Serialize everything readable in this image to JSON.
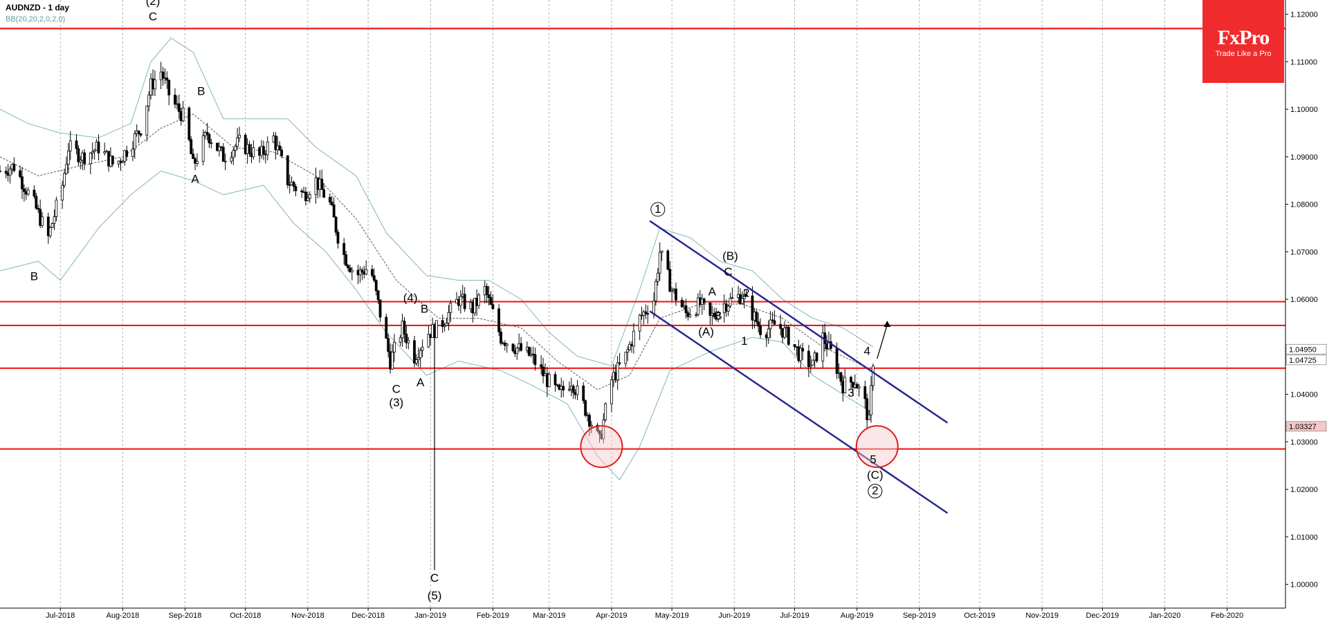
{
  "header": {
    "symbol_title": "AUDNZD - 1 day",
    "indicator_label": "BB(20,20,2,0,2,0)"
  },
  "brand": {
    "name": "FxPro",
    "tagline": "Trade Like a Pro",
    "color": "#ef2b2d"
  },
  "chart_data": {
    "type": "candlestick",
    "title": "AUDNZD - 1 day",
    "xlabel": "",
    "ylabel": "",
    "ylim": [
      0.995,
      1.123
    ],
    "xlim": [
      "2018-06-01",
      "2020-03-01"
    ],
    "grid": true,
    "y_ticks": [
      "1.12000",
      "1.11000",
      "1.10000",
      "1.09000",
      "1.08000",
      "1.07000",
      "1.06000",
      "1.04000",
      "1.03000",
      "1.02000",
      "1.01000",
      "1.00000"
    ],
    "x_ticks": [
      {
        "label": "Jul-2018",
        "date": "2018-07-01"
      },
      {
        "label": "Aug-2018",
        "date": "2018-08-01"
      },
      {
        "label": "Sep-2018",
        "date": "2018-09-01"
      },
      {
        "label": "Oct-2018",
        "date": "2018-10-01"
      },
      {
        "label": "Nov-2018",
        "date": "2018-11-01"
      },
      {
        "label": "Dec-2018",
        "date": "2018-12-01"
      },
      {
        "label": "Jan-2019",
        "date": "2019-01-01"
      },
      {
        "label": "Feb-2019",
        "date": "2019-02-01"
      },
      {
        "label": "Mar-2019",
        "date": "2019-03-01"
      },
      {
        "label": "Apr-2019",
        "date": "2019-04-01"
      },
      {
        "label": "May-2019",
        "date": "2019-05-01"
      },
      {
        "label": "Jun-2019",
        "date": "2019-06-01"
      },
      {
        "label": "Jul-2019",
        "date": "2019-07-01"
      },
      {
        "label": "Aug-2019",
        "date": "2019-08-01"
      },
      {
        "label": "Sep-2019",
        "date": "2019-09-01"
      },
      {
        "label": "Oct-2019",
        "date": "2019-10-01"
      },
      {
        "label": "Nov-2019",
        "date": "2019-11-01"
      },
      {
        "label": "Dec-2019",
        "date": "2019-12-01"
      },
      {
        "label": "Jan-2020",
        "date": "2020-01-01"
      },
      {
        "label": "Feb-2020",
        "date": "2020-02-01"
      }
    ],
    "price_tags": [
      {
        "value": 1.0495,
        "label": "1.04950",
        "style": "white"
      },
      {
        "value": 1.04725,
        "label": "1.04725",
        "style": "white"
      },
      {
        "value": 1.03327,
        "label": "1.03327",
        "style": "pink"
      }
    ],
    "horizontal_levels": [
      1.117,
      1.0595,
      1.0545,
      1.0455,
      1.0285
    ],
    "price_path": [
      [
        "2018-06-01",
        1.087
      ],
      [
        "2018-06-08",
        1.088
      ],
      [
        "2018-06-18",
        1.08
      ],
      [
        "2018-06-25",
        1.073
      ],
      [
        "2018-07-02",
        1.084
      ],
      [
        "2018-07-05",
        1.092
      ],
      [
        "2018-07-12",
        1.09
      ],
      [
        "2018-07-20",
        1.092
      ],
      [
        "2018-07-28",
        1.088
      ],
      [
        "2018-08-04",
        1.092
      ],
      [
        "2018-08-10",
        1.096
      ],
      [
        "2018-08-15",
        1.105
      ],
      [
        "2018-08-20",
        1.108
      ],
      [
        "2018-08-25",
        1.102
      ],
      [
        "2018-09-01",
        1.098
      ],
      [
        "2018-09-05",
        1.088
      ],
      [
        "2018-09-12",
        1.095
      ],
      [
        "2018-09-20",
        1.09
      ],
      [
        "2018-09-28",
        1.093
      ],
      [
        "2018-10-08",
        1.09
      ],
      [
        "2018-10-15",
        1.094
      ],
      [
        "2018-10-22",
        1.085
      ],
      [
        "2018-10-30",
        1.082
      ],
      [
        "2018-11-05",
        1.085
      ],
      [
        "2018-11-12",
        1.08
      ],
      [
        "2018-11-18",
        1.07
      ],
      [
        "2018-11-25",
        1.065
      ],
      [
        "2018-12-02",
        1.067
      ],
      [
        "2018-12-08",
        1.055
      ],
      [
        "2018-12-12",
        1.047
      ],
      [
        "2018-12-18",
        1.054
      ],
      [
        "2018-12-24",
        1.048
      ],
      [
        "2018-12-31",
        1.053
      ],
      [
        "2019-01-05",
        1.054
      ],
      [
        "2019-01-15",
        1.06
      ],
      [
        "2019-01-22",
        1.058
      ],
      [
        "2019-01-28",
        1.062
      ],
      [
        "2019-02-05",
        1.052
      ],
      [
        "2019-02-12",
        1.05
      ],
      [
        "2019-02-20",
        1.048
      ],
      [
        "2019-02-28",
        1.043
      ],
      [
        "2019-03-06",
        1.04
      ],
      [
        "2019-03-12",
        1.043
      ],
      [
        "2019-03-20",
        1.036
      ],
      [
        "2019-03-26",
        1.03
      ],
      [
        "2019-04-01",
        1.043
      ],
      [
        "2019-04-08",
        1.048
      ],
      [
        "2019-04-15",
        1.056
      ],
      [
        "2019-04-22",
        1.06
      ],
      [
        "2019-04-25",
        1.07
      ],
      [
        "2019-05-01",
        1.062
      ],
      [
        "2019-05-08",
        1.057
      ],
      [
        "2019-05-15",
        1.059
      ],
      [
        "2019-05-20",
        1.056
      ],
      [
        "2019-05-27",
        1.059
      ],
      [
        "2019-06-05",
        1.061
      ],
      [
        "2019-06-10",
        1.057
      ],
      [
        "2019-06-15",
        1.053
      ],
      [
        "2019-06-22",
        1.055
      ],
      [
        "2019-06-28",
        1.052
      ],
      [
        "2019-07-04",
        1.048
      ],
      [
        "2019-07-10",
        1.046
      ],
      [
        "2019-07-15",
        1.052
      ],
      [
        "2019-07-20",
        1.048
      ],
      [
        "2019-07-25",
        1.042
      ],
      [
        "2019-07-31",
        1.043
      ],
      [
        "2019-08-05",
        1.038
      ],
      [
        "2019-08-07",
        1.034
      ],
      [
        "2019-08-09",
        1.0472
      ]
    ],
    "spike": {
      "date": "2019-01-03",
      "low": 1.003,
      "high": 1.052
    },
    "bollinger": {
      "upper": [
        [
          "2018-06-01",
          1.1
        ],
        [
          "2018-06-15",
          1.097
        ],
        [
          "2018-07-01",
          1.095
        ],
        [
          "2018-07-20",
          1.094
        ],
        [
          "2018-08-05",
          1.097
        ],
        [
          "2018-08-15",
          1.11
        ],
        [
          "2018-08-25",
          1.115
        ],
        [
          "2018-09-05",
          1.112
        ],
        [
          "2018-09-20",
          1.098
        ],
        [
          "2018-10-08",
          1.098
        ],
        [
          "2018-10-22",
          1.098
        ],
        [
          "2018-11-05",
          1.092
        ],
        [
          "2018-11-25",
          1.086
        ],
        [
          "2018-12-10",
          1.074
        ],
        [
          "2018-12-30",
          1.065
        ],
        [
          "2019-01-15",
          1.064
        ],
        [
          "2019-01-30",
          1.064
        ],
        [
          "2019-02-15",
          1.06
        ],
        [
          "2019-03-01",
          1.053
        ],
        [
          "2019-03-15",
          1.048
        ],
        [
          "2019-04-01",
          1.046
        ],
        [
          "2019-04-15",
          1.062
        ],
        [
          "2019-04-25",
          1.075
        ],
        [
          "2019-05-10",
          1.073
        ],
        [
          "2019-05-25",
          1.068
        ],
        [
          "2019-06-10",
          1.066
        ],
        [
          "2019-06-25",
          1.06
        ],
        [
          "2019-07-10",
          1.056
        ],
        [
          "2019-07-25",
          1.054
        ],
        [
          "2019-08-09",
          1.05
        ]
      ],
      "middle": [
        [
          "2018-06-01",
          1.09
        ],
        [
          "2018-06-20",
          1.086
        ],
        [
          "2018-07-10",
          1.088
        ],
        [
          "2018-08-01",
          1.09
        ],
        [
          "2018-08-20",
          1.096
        ],
        [
          "2018-09-05",
          1.099
        ],
        [
          "2018-09-25",
          1.092
        ],
        [
          "2018-10-15",
          1.091
        ],
        [
          "2018-11-05",
          1.086
        ],
        [
          "2018-11-25",
          1.077
        ],
        [
          "2018-12-15",
          1.064
        ],
        [
          "2019-01-05",
          1.056
        ],
        [
          "2019-01-25",
          1.056
        ],
        [
          "2019-02-15",
          1.054
        ],
        [
          "2019-03-05",
          1.047
        ],
        [
          "2019-03-25",
          1.041
        ],
        [
          "2019-04-10",
          1.044
        ],
        [
          "2019-04-25",
          1.056
        ],
        [
          "2019-05-15",
          1.059
        ],
        [
          "2019-06-05",
          1.059
        ],
        [
          "2019-06-25",
          1.056
        ],
        [
          "2019-07-15",
          1.05
        ],
        [
          "2019-08-09",
          1.045
        ]
      ],
      "lower": [
        [
          "2018-06-01",
          1.066
        ],
        [
          "2018-06-20",
          1.068
        ],
        [
          "2018-07-01",
          1.064
        ],
        [
          "2018-07-20",
          1.075
        ],
        [
          "2018-08-05",
          1.082
        ],
        [
          "2018-08-20",
          1.087
        ],
        [
          "2018-09-05",
          1.085
        ],
        [
          "2018-09-20",
          1.082
        ],
        [
          "2018-10-10",
          1.084
        ],
        [
          "2018-10-25",
          1.076
        ],
        [
          "2018-11-10",
          1.07
        ],
        [
          "2018-11-25",
          1.062
        ],
        [
          "2018-12-10",
          1.053
        ],
        [
          "2018-12-30",
          1.044
        ],
        [
          "2019-01-15",
          1.047
        ],
        [
          "2019-02-05",
          1.045
        ],
        [
          "2019-02-20",
          1.042
        ],
        [
          "2019-03-10",
          1.038
        ],
        [
          "2019-03-25",
          1.027
        ],
        [
          "2019-04-05",
          1.022
        ],
        [
          "2019-04-15",
          1.029
        ],
        [
          "2019-04-30",
          1.045
        ],
        [
          "2019-05-20",
          1.049
        ],
        [
          "2019-06-10",
          1.052
        ],
        [
          "2019-06-25",
          1.051
        ],
        [
          "2019-07-10",
          1.044
        ],
        [
          "2019-07-25",
          1.04
        ],
        [
          "2019-08-09",
          1.036
        ]
      ]
    },
    "channel_lines": [
      {
        "from": [
          "2019-04-20",
          1.0765
        ],
        "to": [
          "2019-09-15",
          1.034
        ]
      },
      {
        "from": [
          "2019-04-20",
          1.0575
        ],
        "to": [
          "2019-09-15",
          1.015
        ]
      }
    ],
    "circles": [
      {
        "date": "2019-03-27",
        "price": 1.029
      },
      {
        "date": "2019-08-11",
        "price": 1.029
      }
    ],
    "arrow": {
      "from": [
        "2019-08-11",
        1.0475
      ],
      "to": [
        "2019-08-16",
        1.0555
      ]
    },
    "wave_labels": [
      {
        "text": "(2)",
        "date": "2018-08-16",
        "price": 1.122
      },
      {
        "text": "C",
        "date": "2018-08-16",
        "price": 1.1187
      },
      {
        "text": "B",
        "date": "2018-06-18",
        "price": 1.064
      },
      {
        "text": "B",
        "date": "2018-09-09",
        "price": 1.103
      },
      {
        "text": "A",
        "date": "2018-09-06",
        "price": 1.0845
      },
      {
        "text": "(4)",
        "date": "2018-12-22",
        "price": 1.0595
      },
      {
        "text": "B",
        "date": "2018-12-29",
        "price": 1.0572
      },
      {
        "text": "C",
        "date": "2018-12-15",
        "price": 1.0403
      },
      {
        "text": "(3)",
        "date": "2018-12-15",
        "price": 1.0375
      },
      {
        "text": "A",
        "date": "2018-12-27",
        "price": 1.0417
      },
      {
        "text": "C",
        "date": "2019-01-03",
        "price": 1.0005
      },
      {
        "text": "(5)",
        "date": "2019-01-03",
        "price": 0.9968
      },
      {
        "text": "(B)",
        "date": "2019-05-30",
        "price": 1.0683
      },
      {
        "text": "C",
        "date": "2019-05-29",
        "price": 1.065
      },
      {
        "text": "A",
        "date": "2019-05-21",
        "price": 1.0608
      },
      {
        "text": "2",
        "date": "2019-06-07",
        "price": 1.0605
      },
      {
        "text": "B",
        "date": "2019-05-24",
        "price": 1.0557
      },
      {
        "text": "(A)",
        "date": "2019-05-18",
        "price": 1.0524
      },
      {
        "text": "1",
        "date": "2019-06-06",
        "price": 1.0504
      },
      {
        "text": "4",
        "date": "2019-08-06",
        "price": 1.0483
      },
      {
        "text": "3",
        "date": "2019-07-29",
        "price": 1.0395
      },
      {
        "text": "5",
        "date": "2019-08-09",
        "price": 1.0255
      },
      {
        "text": "(C)",
        "date": "2019-08-10",
        "price": 1.0222
      },
      {
        "text": "1",
        "date": "2019-04-24",
        "price": 1.0782,
        "circled": true
      },
      {
        "text": "2",
        "date": "2019-08-10",
        "price": 1.0189,
        "circled": true
      }
    ]
  },
  "colors": {
    "level_line": "#ee1c1c",
    "channel": "#27278f",
    "bollinger": "#7fb6bb",
    "grid": "#b0b0b0",
    "circle_fill": "#f7c9c9",
    "circle_stroke": "#e21b1b"
  }
}
